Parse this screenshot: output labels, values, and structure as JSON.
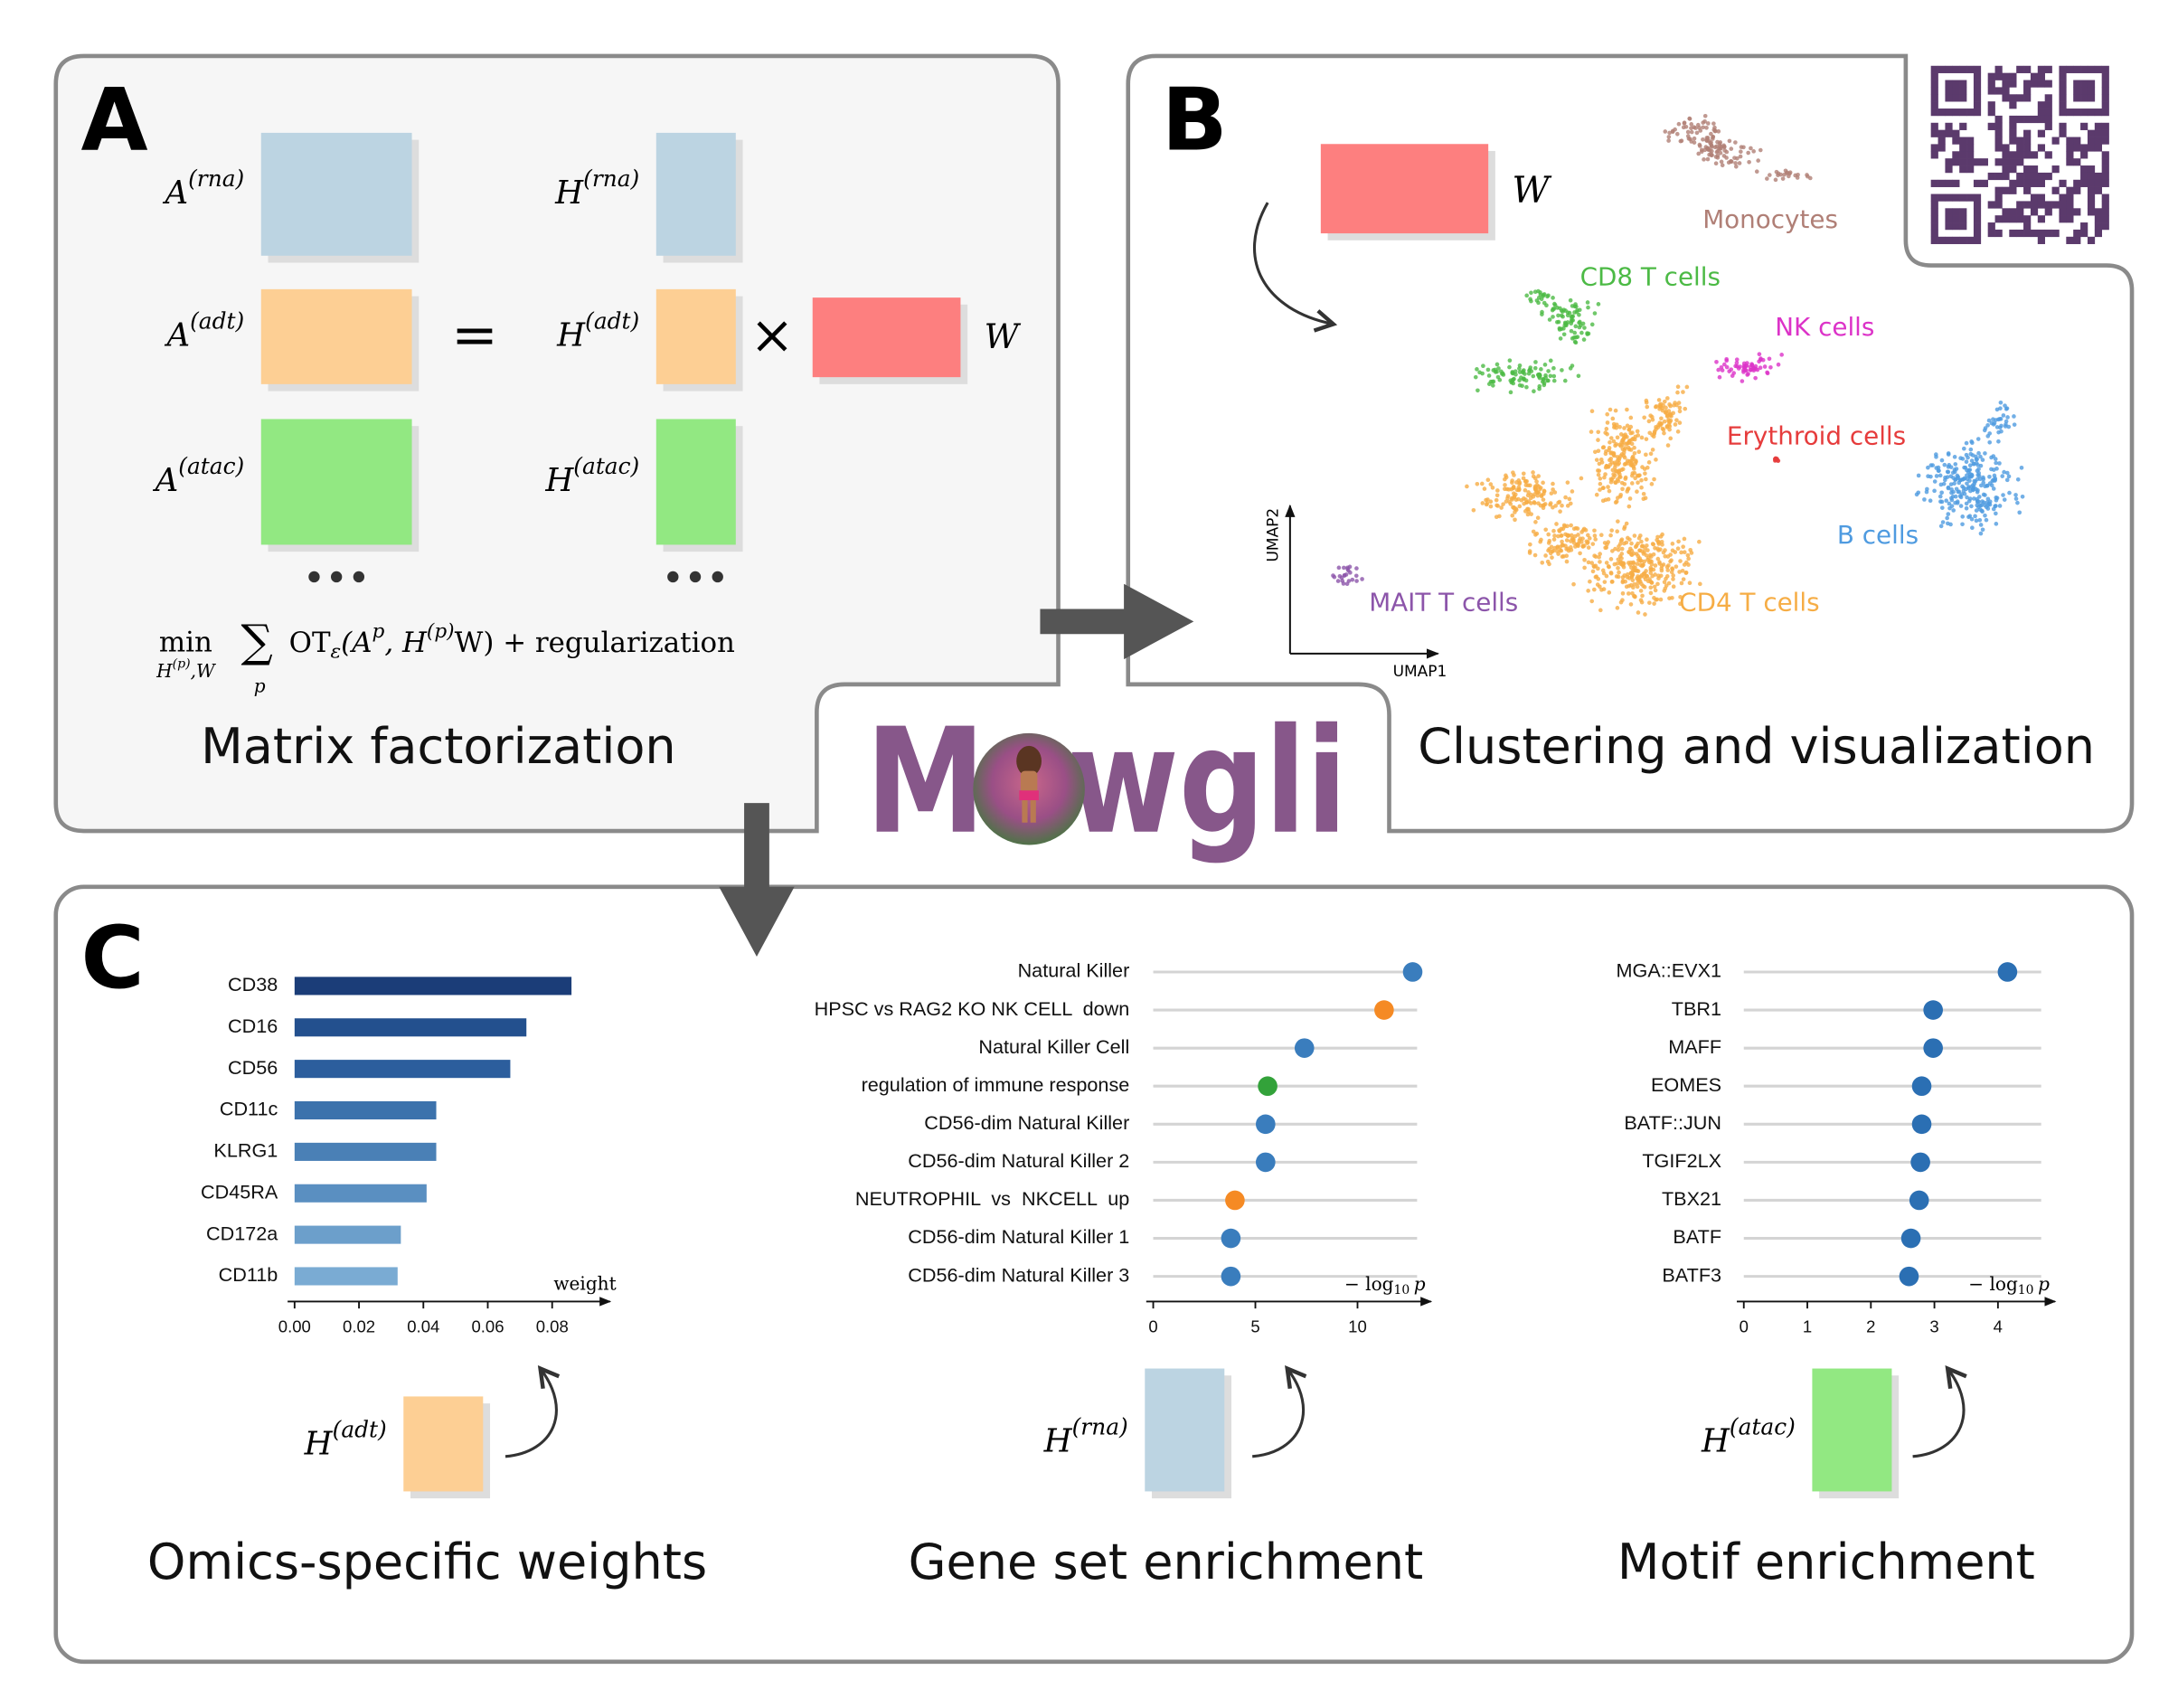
{
  "panel_a": {
    "label": "A",
    "title": "Matrix factorization",
    "left": [
      {
        "base": "A",
        "sup": "(rna)"
      },
      {
        "base": "A",
        "sup": "(adt)"
      },
      {
        "base": "A",
        "sup": "(atac)"
      }
    ],
    "right": [
      {
        "base": "H",
        "sup": "(rna)"
      },
      {
        "base": "H",
        "sup": "(adt)"
      },
      {
        "base": "H",
        "sup": "(atac)"
      }
    ],
    "equals": "=",
    "times": "×",
    "w": "W",
    "objective": {
      "min": "min",
      "min_under": [
        {
          "t": "H",
          "i": true
        },
        {
          "t": "(p)",
          "s": "sup",
          "i": true
        },
        {
          "t": ",W",
          "i": true
        }
      ],
      "sum": "∑",
      "sum_under": "p",
      "body": [
        {
          "t": "OT"
        },
        {
          "t": "ε",
          "s": "sub",
          "i": true
        },
        {
          "t": "(A",
          "i": true
        },
        {
          "t": "p",
          "s": "sup",
          "i": true
        },
        {
          "t": ", H",
          "i": true
        },
        {
          "t": "(p)",
          "s": "sup",
          "i": true
        },
        {
          "t": "W) + regularization"
        }
      ]
    }
  },
  "panel_b": {
    "label": "B",
    "title": "Clustering and visualization",
    "w": "W",
    "x_label": "UMAP1",
    "y_label": "UMAP2",
    "clusters": [
      {
        "name": "Monocytes",
        "color": "#b07f76"
      },
      {
        "name": "CD8 T cells",
        "color": "#4cba45"
      },
      {
        "name": "NK cells",
        "color": "#dc33c8"
      },
      {
        "name": "Erythroid cells",
        "color": "#e63c3c"
      },
      {
        "name": "B cells",
        "color": "#4f9be0"
      },
      {
        "name": "MAIT T cells",
        "color": "#8c55aa"
      },
      {
        "name": "CD4 T cells",
        "color": "#f6ad45"
      }
    ]
  },
  "logo": "Mowgli",
  "panel_c": {
    "label": "C"
  },
  "chart_data": [
    {
      "type": "bar",
      "categories": [
        "CD38",
        "CD16",
        "CD56",
        "CD11c",
        "KLRG1",
        "CD45RA",
        "CD172a",
        "CD11b"
      ],
      "values": [
        0.086,
        0.072,
        0.067,
        0.044,
        0.044,
        0.041,
        0.033,
        0.032
      ],
      "colors": [
        "#1b3d78",
        "#23508e",
        "#2c5e9d",
        "#3c72ac",
        "#4a80b6",
        "#5a8fc1",
        "#6c9fcb",
        "#7aabd3"
      ],
      "x_label": "weight",
      "xlim": [
        0,
        0.098
      ],
      "xticks": [
        {
          "value": 0,
          "label": "0.00"
        },
        0.02,
        0.04,
        0.06,
        0.08
      ],
      "factor": {
        "base": "H",
        "sup": "(adt)"
      },
      "factor_color": "#fdcf94",
      "caption": "Omics-specific weights"
    },
    {
      "type": "lollipop",
      "categories": [
        "Natural Killer",
        "HPSC vs RAG2 KO NK CELL  down",
        "Natural Killer Cell",
        "regulation of immune response",
        "CD56-dim Natural Killer",
        "CD56-dim Natural Killer 2",
        "NEUTROPHIL  vs  NKCELL  up",
        "CD56-dim Natural Killer 1",
        "CD56-dim Natural Killer 3"
      ],
      "values": [
        12.7,
        11.3,
        7.4,
        5.6,
        5.5,
        5.5,
        4.0,
        3.8,
        3.8
      ],
      "colors": [
        "#3a7dbd",
        "#f58a24",
        "#3a7dbd",
        "#33a23a",
        "#3a7dbd",
        "#3a7dbd",
        "#f58a24",
        "#3a7dbd",
        "#3a7dbd"
      ],
      "x_label": {
        "text": "− log",
        "sub": "10",
        "var": "p"
      },
      "xlim": [
        0,
        13.6
      ],
      "xticks": [
        0,
        5,
        10
      ],
      "factor": {
        "base": "H",
        "sup": "(rna)"
      },
      "factor_color": "#bcd4e2",
      "caption": "Gene set enrichment"
    },
    {
      "type": "lollipop",
      "categories": [
        "MGA::EVX1",
        "TBR1",
        "MAFF",
        "EOMES",
        "BATF::JUN",
        "TGIF2LX",
        "TBX21",
        "BATF",
        "BATF3"
      ],
      "values": [
        4.15,
        2.98,
        2.98,
        2.8,
        2.8,
        2.78,
        2.76,
        2.63,
        2.6
      ],
      "color": "#2b6fb3",
      "x_label": {
        "text": "− log",
        "sub": "10",
        "var": "p"
      },
      "xlim": [
        0,
        4.9
      ],
      "xticks": [
        0,
        1,
        2,
        3,
        4
      ],
      "factor": {
        "base": "H",
        "sup": "(atac)"
      },
      "factor_color": "#92e882",
      "caption": "Motif enrichment"
    }
  ]
}
